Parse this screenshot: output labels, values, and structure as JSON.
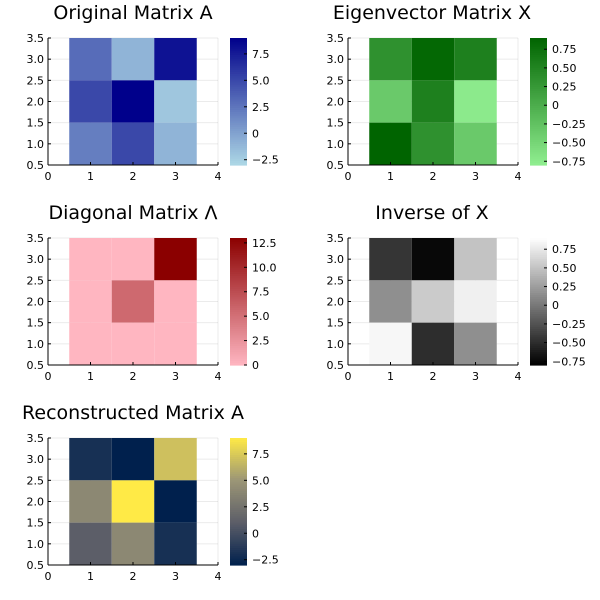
{
  "chart_data": [
    {
      "type": "heatmap",
      "title": "Original Matrix A",
      "xlim": [
        0,
        4
      ],
      "ylim": [
        0.5,
        3.5
      ],
      "xticks": [
        "0",
        "1",
        "2",
        "3",
        "4"
      ],
      "yticks": [
        "0.5",
        "1.0",
        "1.5",
        "2.0",
        "2.5",
        "3.0",
        "3.5"
      ],
      "rows": [
        [
          3,
          -1,
          8
        ],
        [
          5,
          9,
          -2
        ],
        [
          2,
          5,
          -1
        ]
      ],
      "clim": [
        -3,
        9
      ],
      "colorbar_ticks": [
        "−2.5",
        "0",
        "2.5",
        "5.0",
        "7.5"
      ],
      "colorbar_values": [
        -2.5,
        0,
        2.5,
        5,
        7.5
      ],
      "colormap": [
        "#add8e6",
        "#00008b"
      ]
    },
    {
      "type": "heatmap",
      "title": "Eigenvector Matrix X",
      "xlim": [
        0,
        4
      ],
      "ylim": [
        0.5,
        3.5
      ],
      "xticks": [
        "0",
        "1",
        "2",
        "3",
        "4"
      ],
      "yticks": [
        "0.5",
        "1.0",
        "1.5",
        "2.0",
        "2.5",
        "3.0",
        "3.5"
      ],
      "rows": [
        [
          0.35,
          0.85,
          0.55
        ],
        [
          -0.35,
          0.55,
          -0.75
        ],
        [
          0.9,
          0.35,
          -0.35
        ]
      ],
      "clim": [
        -0.8,
        0.9
      ],
      "colorbar_ticks": [
        "−0.75",
        "−0.50",
        "−0.25",
        "0",
        "0.25",
        "0.50",
        "0.75"
      ],
      "colorbar_values": [
        -0.75,
        -0.5,
        -0.25,
        0,
        0.25,
        0.5,
        0.75
      ],
      "colormap": [
        "#90ee90",
        "#006400"
      ]
    },
    {
      "type": "heatmap",
      "title": "Diagonal Matrix Λ",
      "xlim": [
        0,
        4
      ],
      "ylim": [
        0.5,
        3.5
      ],
      "xticks": [
        "0",
        "1",
        "2",
        "3",
        "4"
      ],
      "yticks": [
        "0.5",
        "1.0",
        "1.5",
        "2.0",
        "2.5",
        "3.0",
        "3.5"
      ],
      "rows": [
        [
          0,
          0,
          13
        ],
        [
          0,
          5.5,
          0
        ],
        [
          0,
          0,
          0
        ]
      ],
      "clim": [
        0,
        13
      ],
      "colorbar_ticks": [
        "0",
        "2.5",
        "5.0",
        "7.5",
        "10.0",
        "12.5"
      ],
      "colorbar_values": [
        0,
        2.5,
        5,
        7.5,
        10,
        12.5
      ],
      "colormap": [
        "#ffb6c1",
        "#8b0000"
      ]
    },
    {
      "type": "heatmap",
      "title": "Inverse of X",
      "xlim": [
        0,
        4
      ],
      "ylim": [
        0.5,
        3.5
      ],
      "xticks": [
        "0",
        "1",
        "2",
        "3",
        "4"
      ],
      "yticks": [
        "0.5",
        "1.0",
        "1.5",
        "2.0",
        "2.5",
        "3.0",
        "3.5"
      ],
      "rows": [
        [
          -0.45,
          -0.75,
          0.5
        ],
        [
          0.15,
          0.55,
          0.8
        ],
        [
          0.85,
          -0.5,
          0.15
        ]
      ],
      "clim": [
        -0.8,
        0.9
      ],
      "colorbar_ticks": [
        "−0.75",
        "−0.50",
        "−0.25",
        "0",
        "0.25",
        "0.50",
        "0.75"
      ],
      "colorbar_values": [
        -0.75,
        -0.5,
        -0.25,
        0,
        0.25,
        0.5,
        0.75
      ],
      "colormap": [
        "#000000",
        "#ffffff"
      ]
    },
    {
      "type": "heatmap",
      "title": "Reconstructed Matrix A",
      "xlim": [
        0,
        4
      ],
      "ylim": [
        0.5,
        3.5
      ],
      "xticks": [
        "0",
        "1",
        "2",
        "3",
        "4"
      ],
      "yticks": [
        "0.5",
        "1.0",
        "1.5",
        "2.0",
        "2.5",
        "3.0",
        "3.5"
      ],
      "rows": [
        [
          -2,
          -3,
          7
        ],
        [
          4,
          9,
          -3
        ],
        [
          1,
          4,
          -2
        ]
      ],
      "clim": [
        -3,
        9
      ],
      "colorbar_ticks": [
        "−2.5",
        "0",
        "2.5",
        "5.0",
        "7.5"
      ],
      "colorbar_values": [
        -2.5,
        0,
        2.5,
        5,
        7.5
      ],
      "colormap": [
        "#00204d",
        "#5c5e68",
        "#9c9676",
        "#ffea46"
      ]
    }
  ]
}
